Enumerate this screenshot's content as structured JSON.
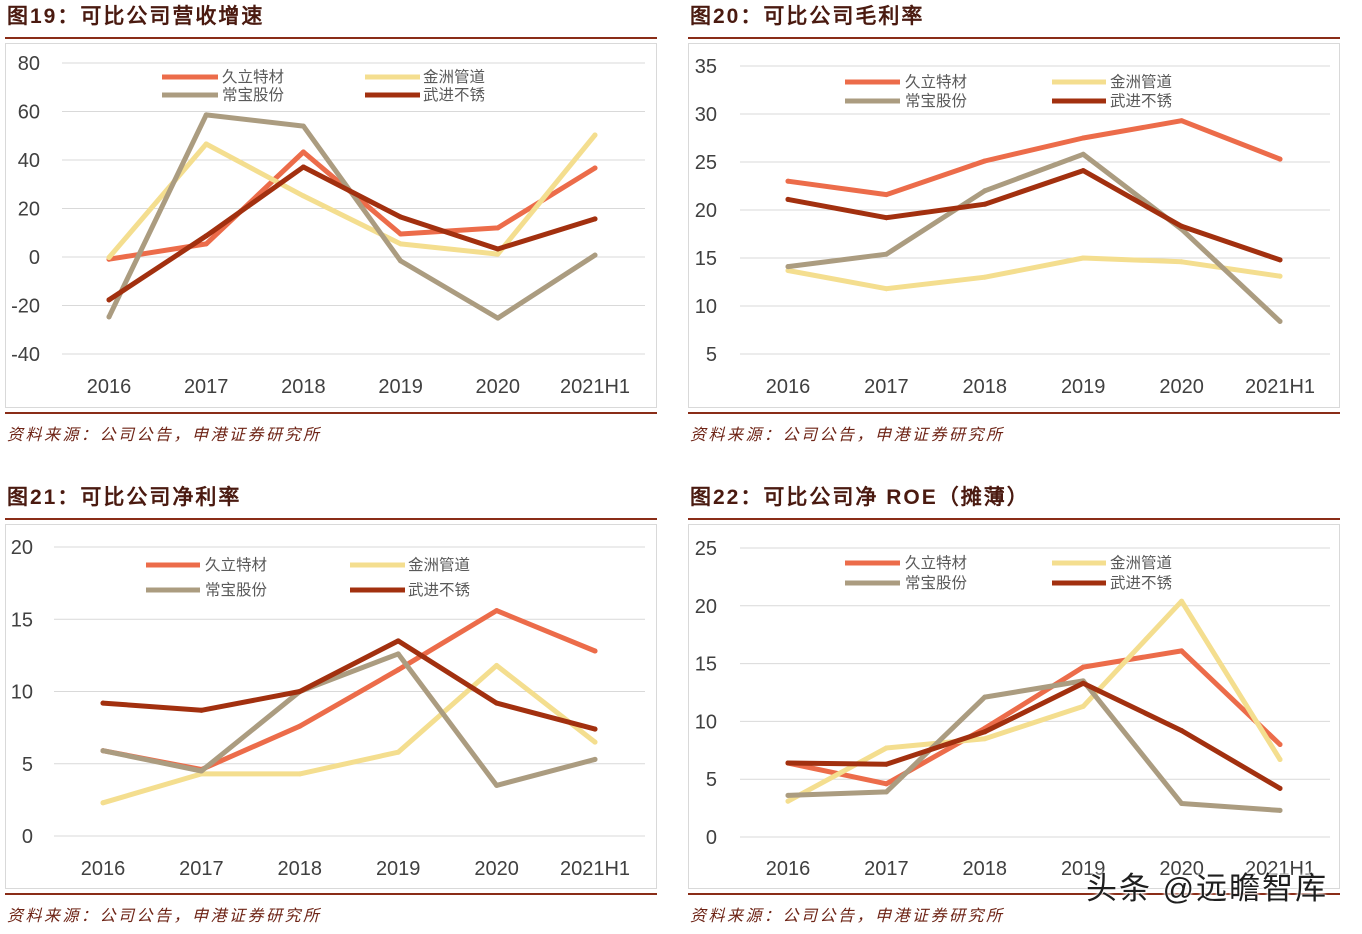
{
  "chart_data": [
    {
      "type": "line",
      "title": "图19：可比公司营收增速",
      "categories": [
        "2016",
        "2017",
        "2018",
        "2019",
        "2020",
        "2021H1"
      ],
      "ylim": [
        -40,
        80
      ],
      "yticks": [
        80,
        60,
        40,
        20,
        0,
        -20,
        -40
      ],
      "grid": true,
      "legend_position": "top",
      "series": [
        {
          "name": "久立特材",
          "color": "#EC6C4A",
          "values": [
            -0.9,
            5.4,
            43.3,
            9.5,
            12.0,
            36.7
          ]
        },
        {
          "name": "金洲管道",
          "color": "#F4DE8F",
          "values": [
            -0.2,
            46.6,
            25.2,
            5.4,
            1.2,
            50.3
          ]
        },
        {
          "name": "常宝股份",
          "color": "#AB9C80",
          "values": [
            -24.7,
            58.6,
            54.0,
            -1.6,
            -25.2,
            0.8
          ]
        },
        {
          "name": "武进不锈",
          "color": "#A2300F",
          "values": [
            -17.7,
            8.7,
            37.1,
            16.5,
            3.3,
            15.7
          ]
        }
      ],
      "source": "资料来源：公司公告，申港证券研究所"
    },
    {
      "type": "line",
      "title": "图20：可比公司毛利率",
      "categories": [
        "2016",
        "2017",
        "2018",
        "2019",
        "2020",
        "2021H1"
      ],
      "ylim": [
        5,
        35
      ],
      "yticks": [
        35,
        30,
        25,
        20,
        15,
        10,
        5
      ],
      "grid": true,
      "legend_position": "top",
      "series": [
        {
          "name": "久立特材",
          "color": "#EC6C4A",
          "values": [
            23.0,
            21.6,
            25.1,
            27.5,
            29.3,
            25.3
          ]
        },
        {
          "name": "金洲管道",
          "color": "#F4DE8F",
          "values": [
            13.7,
            11.8,
            13.0,
            15.0,
            14.6,
            13.1
          ]
        },
        {
          "name": "常宝股份",
          "color": "#AB9C80",
          "values": [
            14.1,
            15.4,
            22.0,
            25.8,
            18.0,
            8.4
          ]
        },
        {
          "name": "武进不锈",
          "color": "#A2300F",
          "values": [
            21.1,
            19.2,
            20.6,
            24.1,
            18.3,
            14.8
          ]
        }
      ],
      "source": "资料来源：公司公告，申港证券研究所"
    },
    {
      "type": "line",
      "title": "图21：可比公司净利率",
      "categories": [
        "2016",
        "2017",
        "2018",
        "2019",
        "2020",
        "2021H1"
      ],
      "ylim": [
        0,
        20
      ],
      "yticks": [
        20,
        15,
        10,
        5,
        0
      ],
      "grid": true,
      "legend_position": "top",
      "series": [
        {
          "name": "久立特材",
          "color": "#EC6C4A",
          "values": [
            5.9,
            4.6,
            7.6,
            11.5,
            15.6,
            12.8
          ]
        },
        {
          "name": "金洲管道",
          "color": "#F4DE8F",
          "values": [
            2.3,
            4.3,
            4.3,
            5.8,
            11.8,
            6.5
          ]
        },
        {
          "name": "常宝股份",
          "color": "#AB9C80",
          "values": [
            5.9,
            4.5,
            10.0,
            12.6,
            3.5,
            5.3
          ]
        },
        {
          "name": "武进不锈",
          "color": "#A2300F",
          "values": [
            9.2,
            8.7,
            10.0,
            13.5,
            9.2,
            7.4
          ]
        }
      ],
      "source": "资料来源：公司公告，申港证券研究所"
    },
    {
      "type": "line",
      "title": "图22：可比公司净 ROE（摊薄）",
      "categories": [
        "2016",
        "2017",
        "2018",
        "2019",
        "2020",
        "2021H1"
      ],
      "ylim": [
        0,
        25
      ],
      "yticks": [
        25,
        20,
        15,
        10,
        5,
        0
      ],
      "grid": true,
      "legend_position": "top",
      "series": [
        {
          "name": "久立特材",
          "color": "#EC6C4A",
          "values": [
            6.4,
            4.6,
            9.4,
            14.7,
            16.1,
            8.0
          ]
        },
        {
          "name": "金洲管道",
          "color": "#F4DE8F",
          "values": [
            3.1,
            7.7,
            8.5,
            11.3,
            20.4,
            6.7
          ]
        },
        {
          "name": "常宝股份",
          "color": "#AB9C80",
          "values": [
            3.6,
            3.9,
            12.1,
            13.5,
            2.9,
            2.3
          ]
        },
        {
          "name": "武进不锈",
          "color": "#A2300F",
          "values": [
            6.4,
            6.3,
            9.1,
            13.3,
            9.2,
            4.2
          ]
        }
      ],
      "source": "资料来源：公司公告，申港证券研究所"
    }
  ],
  "watermark": "头条 @远瞻智库"
}
